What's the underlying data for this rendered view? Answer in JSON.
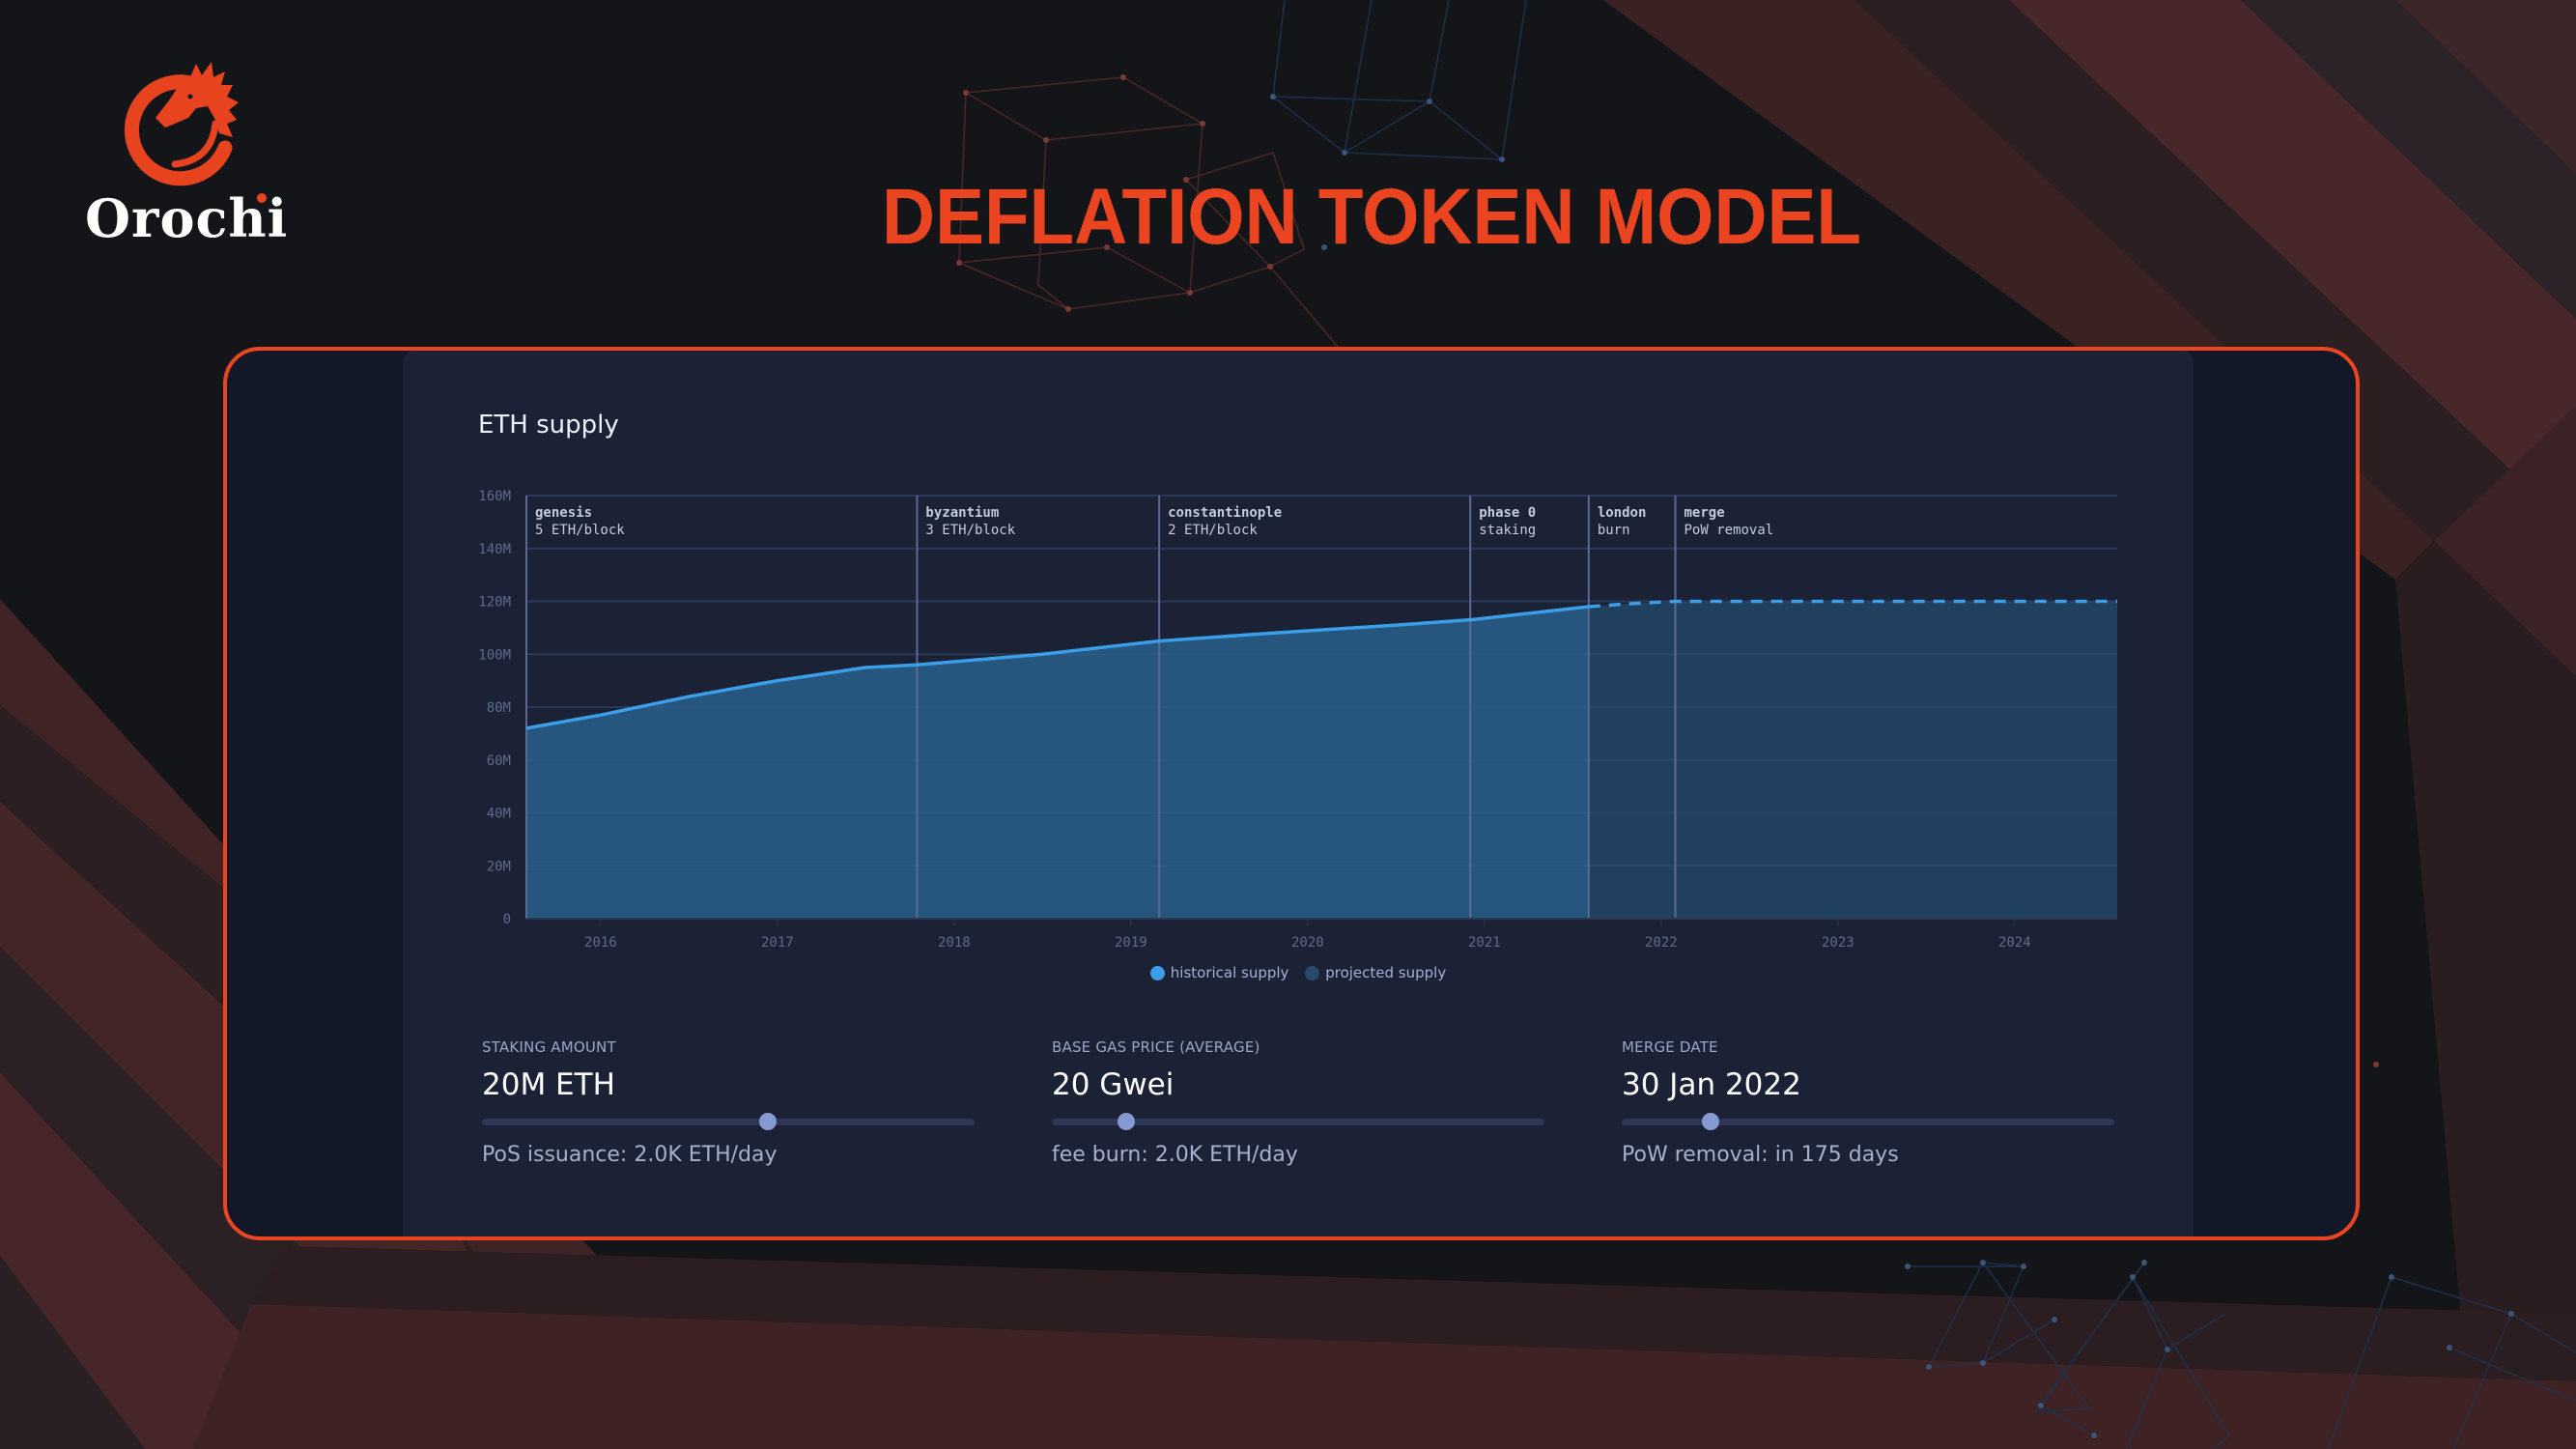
{
  "brand": {
    "name": "Orochi",
    "logo_icon": "dragon-ring-icon",
    "accent_color": "#ea4420"
  },
  "page": {
    "title": "DEFLATION TOKEN MODEL"
  },
  "chart_card": {
    "title": "ETH supply",
    "legend": [
      {
        "label": "historical supply",
        "color": "#3a9fe8"
      },
      {
        "label": "projected supply",
        "color": "#274a6c"
      }
    ]
  },
  "controls": [
    {
      "label": "STAKING AMOUNT",
      "value": "20M ETH",
      "slider_position": 0.58,
      "subtext": "PoS issuance: 2.0K ETH/day"
    },
    {
      "label": "BASE GAS PRICE (AVERAGE)",
      "value": "20 Gwei",
      "slider_position": 0.15,
      "subtext": "fee burn: 2.0K ETH/day"
    },
    {
      "label": "MERGE DATE",
      "value": "30 Jan 2022",
      "slider_position": 0.18,
      "subtext": "PoW removal: in 175 days"
    }
  ],
  "chart_data": {
    "type": "area",
    "title": "ETH supply",
    "xlabel": "",
    "ylabel": "",
    "ylim": [
      0,
      160
    ],
    "y_unit": "M",
    "y_ticks": [
      "0",
      "20M",
      "40M",
      "60M",
      "80M",
      "100M",
      "120M",
      "140M",
      "160M"
    ],
    "x_ticks": [
      "2016",
      "2017",
      "2018",
      "2019",
      "2020",
      "2021",
      "2022",
      "2023",
      "2024"
    ],
    "x_range": [
      2015.58,
      2024.58
    ],
    "grid": true,
    "legend_position": "bottom-center",
    "series": [
      {
        "name": "historical supply",
        "style": "solid",
        "color": "#3a9fe8",
        "x": [
          2015.58,
          2016.0,
          2016.5,
          2017.0,
          2017.5,
          2017.79,
          2018.5,
          2019.16,
          2019.8,
          2020.5,
          2020.92,
          2021.59
        ],
        "values": [
          72,
          77,
          84,
          90,
          95,
          96,
          100,
          105,
          108,
          111,
          113,
          118
        ]
      },
      {
        "name": "projected supply",
        "style": "dashed",
        "color": "#3a9fe8",
        "x": [
          2021.59,
          2021.8,
          2022.08,
          2023.0,
          2024.0,
          2024.58
        ],
        "values": [
          118,
          119,
          120,
          120,
          120,
          120
        ]
      }
    ],
    "annotations": [
      {
        "x": 2015.58,
        "label": "genesis",
        "detail": "5 ETH/block"
      },
      {
        "x": 2017.79,
        "label": "byzantium",
        "detail": "3 ETH/block"
      },
      {
        "x": 2019.16,
        "label": "constantinople",
        "detail": "2 ETH/block"
      },
      {
        "x": 2020.92,
        "label": "phase 0",
        "detail": "staking"
      },
      {
        "x": 2021.59,
        "label": "london",
        "detail": "burn"
      },
      {
        "x": 2022.08,
        "label": "merge",
        "detail": "PoW removal"
      }
    ]
  }
}
